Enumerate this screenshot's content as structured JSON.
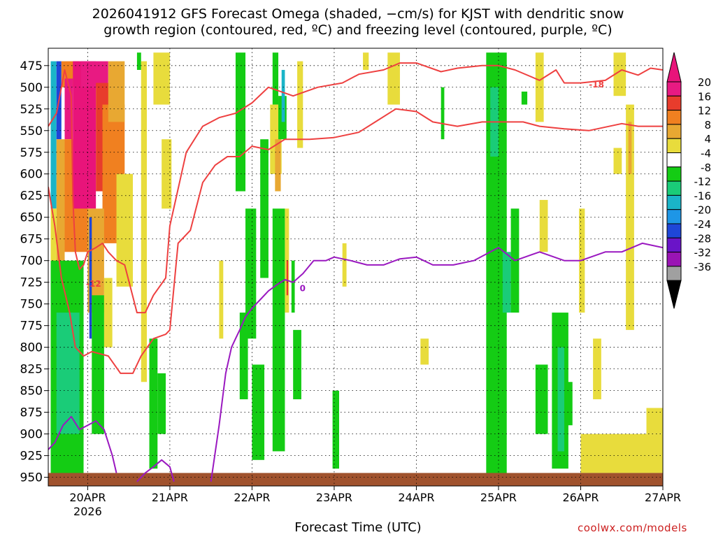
{
  "chart_data": {
    "type": "heatmap",
    "title": "2026041912 GFS Forecast Omega (shaded, −cm/s) for KJST with dendritic snow",
    "subtitle": "growth region (contoured, red, ºC) and freezing level (contoured, purple, ºC)",
    "xlabel": "Forecast Time (UTC)",
    "ylabel": "",
    "x_ticks": [
      {
        "label": "20APR",
        "sublabel": "2026",
        "day": 20
      },
      {
        "label": "21APR",
        "day": 21
      },
      {
        "label": "22APR",
        "day": 22
      },
      {
        "label": "23APR",
        "day": 23
      },
      {
        "label": "24APR",
        "day": 24
      },
      {
        "label": "25APR",
        "day": 25
      },
      {
        "label": "26APR",
        "day": 26
      },
      {
        "label": "27APR",
        "day": 27
      }
    ],
    "xlim_days": [
      19.52,
      27.0
    ],
    "y_levels_mb": [
      475,
      500,
      525,
      550,
      575,
      600,
      625,
      650,
      675,
      700,
      725,
      750,
      775,
      800,
      825,
      850,
      875,
      900,
      925,
      950
    ],
    "ylim_mb": [
      455,
      960
    ],
    "colorbar": {
      "labels": [
        20,
        16,
        12,
        8,
        4,
        -4,
        -8,
        -12,
        -16,
        -20,
        -24,
        -28,
        -32,
        -36
      ],
      "bins": [
        {
          "lo": 20,
          "hi": 24,
          "color": "#e81a82"
        },
        {
          "lo": 16,
          "hi": 20,
          "color": "#e83c2c"
        },
        {
          "lo": 12,
          "hi": 16,
          "color": "#f08020"
        },
        {
          "lo": 8,
          "hi": 12,
          "color": "#e8a832"
        },
        {
          "lo": 4,
          "hi": 8,
          "color": "#e8dc3c"
        },
        {
          "lo": -4,
          "hi": 4,
          "color": "#ffffff"
        },
        {
          "lo": -8,
          "hi": -4,
          "color": "#14cc14"
        },
        {
          "lo": -12,
          "hi": -8,
          "color": "#1acc78"
        },
        {
          "lo": -16,
          "hi": -12,
          "color": "#1ab4c8"
        },
        {
          "lo": -20,
          "hi": -16,
          "color": "#1e96e6"
        },
        {
          "lo": -24,
          "hi": -20,
          "color": "#1e46d8"
        },
        {
          "lo": -28,
          "hi": -24,
          "color": "#6a14c8"
        },
        {
          "lo": -32,
          "hi": -28,
          "color": "#9a14b4"
        },
        {
          "lo": -36,
          "hi": -32,
          "color": "#a0a0a0"
        }
      ],
      "min_arrow_color": "#000000",
      "max_arrow_color": "#e8147a"
    },
    "omega_regions": [
      {
        "t0": 19.55,
        "t1": 19.62,
        "p0": 470,
        "p1": 640,
        "omega": -14
      },
      {
        "t0": 19.62,
        "t1": 19.68,
        "p0": 470,
        "p1": 560,
        "omega": -22
      },
      {
        "t0": 19.62,
        "t1": 19.72,
        "p0": 560,
        "p1": 700,
        "omega": 10
      },
      {
        "t0": 19.55,
        "t1": 19.62,
        "p0": 640,
        "p1": 720,
        "omega": 6
      },
      {
        "t0": 19.68,
        "t1": 19.9,
        "p0": 470,
        "p1": 500,
        "omega": 12
      },
      {
        "t0": 19.72,
        "t1": 19.82,
        "p0": 490,
        "p1": 560,
        "omega": 20
      },
      {
        "t0": 19.72,
        "t1": 20.0,
        "p0": 560,
        "p1": 690,
        "omega": 14
      },
      {
        "t0": 19.82,
        "t1": 20.1,
        "p0": 470,
        "p1": 640,
        "omega": 24
      },
      {
        "t0": 19.92,
        "t1": 20.25,
        "p0": 470,
        "p1": 500,
        "omega": 22
      },
      {
        "t0": 20.1,
        "t1": 20.28,
        "p0": 495,
        "p1": 620,
        "omega": 18
      },
      {
        "t0": 20.18,
        "t1": 20.45,
        "p0": 520,
        "p1": 680,
        "omega": 13
      },
      {
        "t0": 20.25,
        "t1": 20.45,
        "p0": 470,
        "p1": 540,
        "omega": 9
      },
      {
        "t0": 20.35,
        "t1": 20.55,
        "p0": 600,
        "p1": 730,
        "omega": 6
      },
      {
        "t0": 20.0,
        "t1": 20.2,
        "p0": 640,
        "p1": 760,
        "omega": 10
      },
      {
        "t0": 20.02,
        "t1": 20.05,
        "p0": 650,
        "p1": 790,
        "omega": -22
      },
      {
        "t0": 19.55,
        "t1": 19.95,
        "p0": 700,
        "p1": 950,
        "omega": -6
      },
      {
        "t0": 19.62,
        "t1": 19.9,
        "p0": 760,
        "p1": 900,
        "omega": -10
      },
      {
        "t0": 20.05,
        "t1": 20.2,
        "p0": 740,
        "p1": 900,
        "omega": -6
      },
      {
        "t0": 20.2,
        "t1": 20.3,
        "p0": 720,
        "p1": 800,
        "omega": 5
      },
      {
        "t0": 20.6,
        "t1": 20.65,
        "p0": 460,
        "p1": 480,
        "omega": -6
      },
      {
        "t0": 20.65,
        "t1": 20.72,
        "p0": 470,
        "p1": 840,
        "omega": 5
      },
      {
        "t0": 20.75,
        "t1": 20.85,
        "p0": 790,
        "p1": 940,
        "omega": -6
      },
      {
        "t0": 20.85,
        "t1": 20.95,
        "p0": 830,
        "p1": 900,
        "omega": -5
      },
      {
        "t0": 20.8,
        "t1": 21.0,
        "p0": 460,
        "p1": 520,
        "omega": 5
      },
      {
        "t0": 20.9,
        "t1": 21.02,
        "p0": 560,
        "p1": 640,
        "omega": 5
      },
      {
        "t0": 21.6,
        "t1": 21.65,
        "p0": 700,
        "p1": 790,
        "omega": 5
      },
      {
        "t0": 21.8,
        "t1": 21.92,
        "p0": 460,
        "p1": 620,
        "omega": -6
      },
      {
        "t0": 21.85,
        "t1": 21.95,
        "p0": 760,
        "p1": 860,
        "omega": -6
      },
      {
        "t0": 21.92,
        "t1": 22.05,
        "p0": 640,
        "p1": 790,
        "omega": -6
      },
      {
        "t0": 22.0,
        "t1": 22.15,
        "p0": 820,
        "p1": 930,
        "omega": -6
      },
      {
        "t0": 22.1,
        "t1": 22.2,
        "p0": 560,
        "p1": 720,
        "omega": -6
      },
      {
        "t0": 22.25,
        "t1": 22.32,
        "p0": 460,
        "p1": 520,
        "omega": -5
      },
      {
        "t0": 22.22,
        "t1": 22.36,
        "p0": 520,
        "p1": 600,
        "omega": 6
      },
      {
        "t0": 22.28,
        "t1": 22.35,
        "p0": 560,
        "p1": 620,
        "omega": 10
      },
      {
        "t0": 22.32,
        "t1": 22.42,
        "p0": 510,
        "p1": 560,
        "omega": -8
      },
      {
        "t0": 22.36,
        "t1": 22.4,
        "p0": 480,
        "p1": 540,
        "omega": -14
      },
      {
        "t0": 22.25,
        "t1": 22.4,
        "p0": 640,
        "p1": 920,
        "omega": -6
      },
      {
        "t0": 22.4,
        "t1": 22.45,
        "p0": 640,
        "p1": 760,
        "omega": 6
      },
      {
        "t0": 22.42,
        "t1": 22.44,
        "p0": 700,
        "p1": 740,
        "omega": 18
      },
      {
        "t0": 22.48,
        "t1": 22.52,
        "p0": 700,
        "p1": 760,
        "omega": -6
      },
      {
        "t0": 22.55,
        "t1": 22.62,
        "p0": 470,
        "p1": 570,
        "omega": 5
      },
      {
        "t0": 22.5,
        "t1": 22.6,
        "p0": 780,
        "p1": 860,
        "omega": -5
      },
      {
        "t0": 22.98,
        "t1": 23.06,
        "p0": 850,
        "p1": 940,
        "omega": -6
      },
      {
        "t0": 23.1,
        "t1": 23.15,
        "p0": 680,
        "p1": 730,
        "omega": 5
      },
      {
        "t0": 23.35,
        "t1": 23.42,
        "p0": 460,
        "p1": 480,
        "omega": 5
      },
      {
        "t0": 23.65,
        "t1": 23.8,
        "p0": 460,
        "p1": 520,
        "omega": 5
      },
      {
        "t0": 24.05,
        "t1": 24.15,
        "p0": 790,
        "p1": 820,
        "omega": 5
      },
      {
        "t0": 24.3,
        "t1": 24.34,
        "p0": 500,
        "p1": 560,
        "omega": -6
      },
      {
        "t0": 24.85,
        "t1": 25.1,
        "p0": 460,
        "p1": 950,
        "omega": -6
      },
      {
        "t0": 24.9,
        "t1": 25.0,
        "p0": 500,
        "p1": 580,
        "omega": -10
      },
      {
        "t0": 25.05,
        "t1": 25.15,
        "p0": 690,
        "p1": 760,
        "omega": -10
      },
      {
        "t0": 25.15,
        "t1": 25.25,
        "p0": 640,
        "p1": 760,
        "omega": -6
      },
      {
        "t0": 25.28,
        "t1": 25.35,
        "p0": 505,
        "p1": 520,
        "omega": -6
      },
      {
        "t0": 25.45,
        "t1": 25.55,
        "p0": 460,
        "p1": 540,
        "omega": 5
      },
      {
        "t0": 25.5,
        "t1": 25.6,
        "p0": 630,
        "p1": 690,
        "omega": 5
      },
      {
        "t0": 25.65,
        "t1": 25.85,
        "p0": 760,
        "p1": 940,
        "omega": -6
      },
      {
        "t0": 25.72,
        "t1": 25.8,
        "p0": 800,
        "p1": 920,
        "omega": -10
      },
      {
        "t0": 25.45,
        "t1": 25.6,
        "p0": 820,
        "p1": 900,
        "omega": -6
      },
      {
        "t0": 25.82,
        "t1": 25.9,
        "p0": 840,
        "p1": 890,
        "omega": -6
      },
      {
        "t0": 25.98,
        "t1": 26.05,
        "p0": 640,
        "p1": 760,
        "omega": 5
      },
      {
        "t0": 26.15,
        "t1": 26.25,
        "p0": 790,
        "p1": 860,
        "omega": 5
      },
      {
        "t0": 26.4,
        "t1": 26.55,
        "p0": 460,
        "p1": 510,
        "omega": 5
      },
      {
        "t0": 26.4,
        "t1": 26.5,
        "p0": 570,
        "p1": 600,
        "omega": 5
      },
      {
        "t0": 26.55,
        "t1": 26.65,
        "p0": 520,
        "p1": 780,
        "omega": 5
      },
      {
        "t0": 26.58,
        "t1": 26.62,
        "p0": 540,
        "p1": 600,
        "omega": 8
      },
      {
        "t0": 26.0,
        "t1": 27.0,
        "p0": 900,
        "p1": 945,
        "omega": 5
      },
      {
        "t0": 26.8,
        "t1": 27.0,
        "p0": 870,
        "p1": 900,
        "omega": 5
      }
    ],
    "contours": [
      {
        "label": "-18",
        "color": "#ee4040",
        "label_at": [
          26.1,
          497
        ],
        "points": [
          [
            19.52,
            545
          ],
          [
            19.62,
            530
          ],
          [
            19.72,
            480
          ],
          [
            19.8,
            510
          ],
          [
            19.82,
            630
          ],
          [
            19.85,
            690
          ],
          [
            19.9,
            710
          ],
          [
            19.95,
            705
          ],
          [
            20.0,
            690
          ],
          [
            20.1,
            685
          ],
          [
            20.18,
            680
          ],
          [
            20.25,
            690
          ],
          [
            20.35,
            700
          ],
          [
            20.45,
            705
          ],
          [
            20.6,
            760
          ],
          [
            20.7,
            760
          ],
          [
            20.8,
            740
          ],
          [
            20.95,
            720
          ],
          [
            21.0,
            660
          ],
          [
            21.2,
            575
          ],
          [
            21.4,
            545
          ],
          [
            21.6,
            535
          ],
          [
            21.8,
            530
          ],
          [
            22.0,
            518
          ],
          [
            22.2,
            500
          ],
          [
            22.5,
            510
          ],
          [
            22.8,
            500
          ],
          [
            23.1,
            495
          ],
          [
            23.3,
            485
          ],
          [
            23.6,
            480
          ],
          [
            23.8,
            472
          ],
          [
            24.0,
            472
          ],
          [
            24.3,
            482
          ],
          [
            24.5,
            478
          ],
          [
            24.8,
            475
          ],
          [
            25.0,
            475
          ],
          [
            25.2,
            480
          ],
          [
            25.5,
            492
          ],
          [
            25.7,
            480
          ],
          [
            25.8,
            495
          ],
          [
            26.0,
            495
          ],
          [
            26.3,
            492
          ],
          [
            26.5,
            480
          ],
          [
            26.7,
            486
          ],
          [
            26.85,
            478
          ],
          [
            27.0,
            480
          ]
        ]
      },
      {
        "label": "-12",
        "color": "#ee4040",
        "label_at": [
          19.98,
          727
        ],
        "points": [
          [
            19.52,
            615
          ],
          [
            19.6,
            660
          ],
          [
            19.68,
            720
          ],
          [
            19.78,
            760
          ],
          [
            19.85,
            800
          ],
          [
            19.95,
            810
          ],
          [
            20.05,
            805
          ],
          [
            20.25,
            810
          ],
          [
            20.4,
            830
          ],
          [
            20.55,
            830
          ],
          [
            20.65,
            810
          ],
          [
            20.8,
            790
          ],
          [
            20.95,
            785
          ],
          [
            21.0,
            780
          ],
          [
            21.1,
            680
          ],
          [
            21.25,
            665
          ],
          [
            21.4,
            610
          ],
          [
            21.55,
            590
          ],
          [
            21.7,
            580
          ],
          [
            21.85,
            580
          ],
          [
            22.0,
            568
          ],
          [
            22.2,
            572
          ],
          [
            22.4,
            560
          ],
          [
            22.7,
            560
          ],
          [
            23.0,
            558
          ],
          [
            23.3,
            552
          ],
          [
            23.5,
            540
          ],
          [
            23.75,
            525
          ],
          [
            24.0,
            528
          ],
          [
            24.2,
            540
          ],
          [
            24.5,
            545
          ],
          [
            24.8,
            540
          ],
          [
            25.0,
            540
          ],
          [
            25.3,
            540
          ],
          [
            25.5,
            545
          ],
          [
            25.8,
            548
          ],
          [
            26.1,
            550
          ],
          [
            26.5,
            542
          ],
          [
            26.7,
            545
          ],
          [
            27.0,
            545
          ]
        ]
      },
      {
        "label": "0",
        "color": "#9a18c0",
        "label_at": [
          22.58,
          732
        ],
        "points": [
          [
            21.5,
            955
          ],
          [
            21.6,
            890
          ],
          [
            21.68,
            830
          ],
          [
            21.75,
            800
          ],
          [
            21.8,
            790
          ],
          [
            21.85,
            780
          ],
          [
            21.92,
            765
          ],
          [
            22.0,
            755
          ],
          [
            22.1,
            745
          ],
          [
            22.2,
            735
          ],
          [
            22.3,
            728
          ],
          [
            22.4,
            722
          ],
          [
            22.5,
            725
          ],
          [
            22.62,
            715
          ],
          [
            22.75,
            700
          ],
          [
            22.9,
            700
          ],
          [
            23.0,
            696
          ],
          [
            23.2,
            700
          ],
          [
            23.4,
            705
          ],
          [
            23.6,
            705
          ],
          [
            23.8,
            698
          ],
          [
            24.0,
            696
          ],
          [
            24.2,
            705
          ],
          [
            24.45,
            705
          ],
          [
            24.7,
            700
          ],
          [
            24.9,
            690
          ],
          [
            25.0,
            685
          ],
          [
            25.2,
            700
          ],
          [
            25.5,
            690
          ],
          [
            25.8,
            700
          ],
          [
            26.0,
            700
          ],
          [
            26.3,
            690
          ],
          [
            26.5,
            690
          ],
          [
            26.75,
            680
          ],
          [
            27.0,
            685
          ]
        ]
      },
      {
        "label": "",
        "color": "#9a18c0",
        "label_at": [
          0,
          0
        ],
        "points": [
          [
            19.52,
            918
          ],
          [
            19.6,
            910
          ],
          [
            19.7,
            890
          ],
          [
            19.8,
            880
          ],
          [
            19.9,
            895
          ],
          [
            20.0,
            890
          ],
          [
            20.1,
            885
          ],
          [
            20.2,
            895
          ],
          [
            20.3,
            925
          ],
          [
            20.35,
            945
          ]
        ]
      },
      {
        "label": "",
        "color": "#9a18c0",
        "label_at": [
          0,
          0
        ],
        "points": [
          [
            20.6,
            955
          ],
          [
            20.7,
            945
          ],
          [
            20.8,
            938
          ],
          [
            20.9,
            930
          ],
          [
            21.0,
            938
          ],
          [
            21.05,
            955
          ]
        ]
      }
    ],
    "terrain": {
      "color": "#a0522d",
      "top_mb": 945,
      "label": ""
    }
  },
  "credit": "coolwx.com/models"
}
